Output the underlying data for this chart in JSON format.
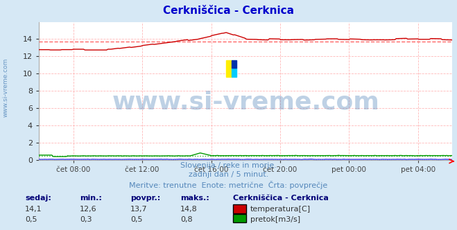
{
  "title": "Cerkniščica - Cerknica",
  "title_color": "#0000cc",
  "bg_color": "#d6e8f5",
  "plot_bg_color": "#ffffff",
  "grid_color": "#ffb0b0",
  "xlabel_ticks": [
    "čet 08:00",
    "čet 12:00",
    "čet 16:00",
    "čet 20:00",
    "pet 00:00",
    "pet 04:00"
  ],
  "ylim": [
    0,
    16
  ],
  "yticks": [
    0,
    2,
    4,
    6,
    8,
    10,
    12,
    14
  ],
  "temp_avg": 13.7,
  "flow_avg": 0.5,
  "temp_color": "#cc0000",
  "temp_avg_color": "#ff6666",
  "flow_color": "#009900",
  "flow_avg_color": "#33bb33",
  "height_color": "#0000dd",
  "height_avg_color": "#8888ff",
  "watermark_text": "www.si-vreme.com",
  "watermark_color": "#5588bb",
  "watermark_alpha": 0.38,
  "watermark_fontsize": 26,
  "left_label": "www.si-vreme.com",
  "left_label_color": "#5588bb",
  "subtitle1": "Slovenija / reke in morje.",
  "subtitle2": "zadnji dan / 5 minut.",
  "subtitle3": "Meritve: trenutne  Enote: metrične  Črta: povprečje",
  "subtitle_color": "#5588bb",
  "legend_title": "Cerkniščica - Cerknica",
  "legend_color": "#000077",
  "headers": [
    "sedaj:",
    "min.:",
    "povpr.:",
    "maks.:"
  ],
  "temp_vals": [
    "14,1",
    "12,6",
    "13,7",
    "14,8"
  ],
  "flow_vals": [
    "0,5",
    "0,3",
    "0,5",
    "0,8"
  ],
  "n_points": 288
}
